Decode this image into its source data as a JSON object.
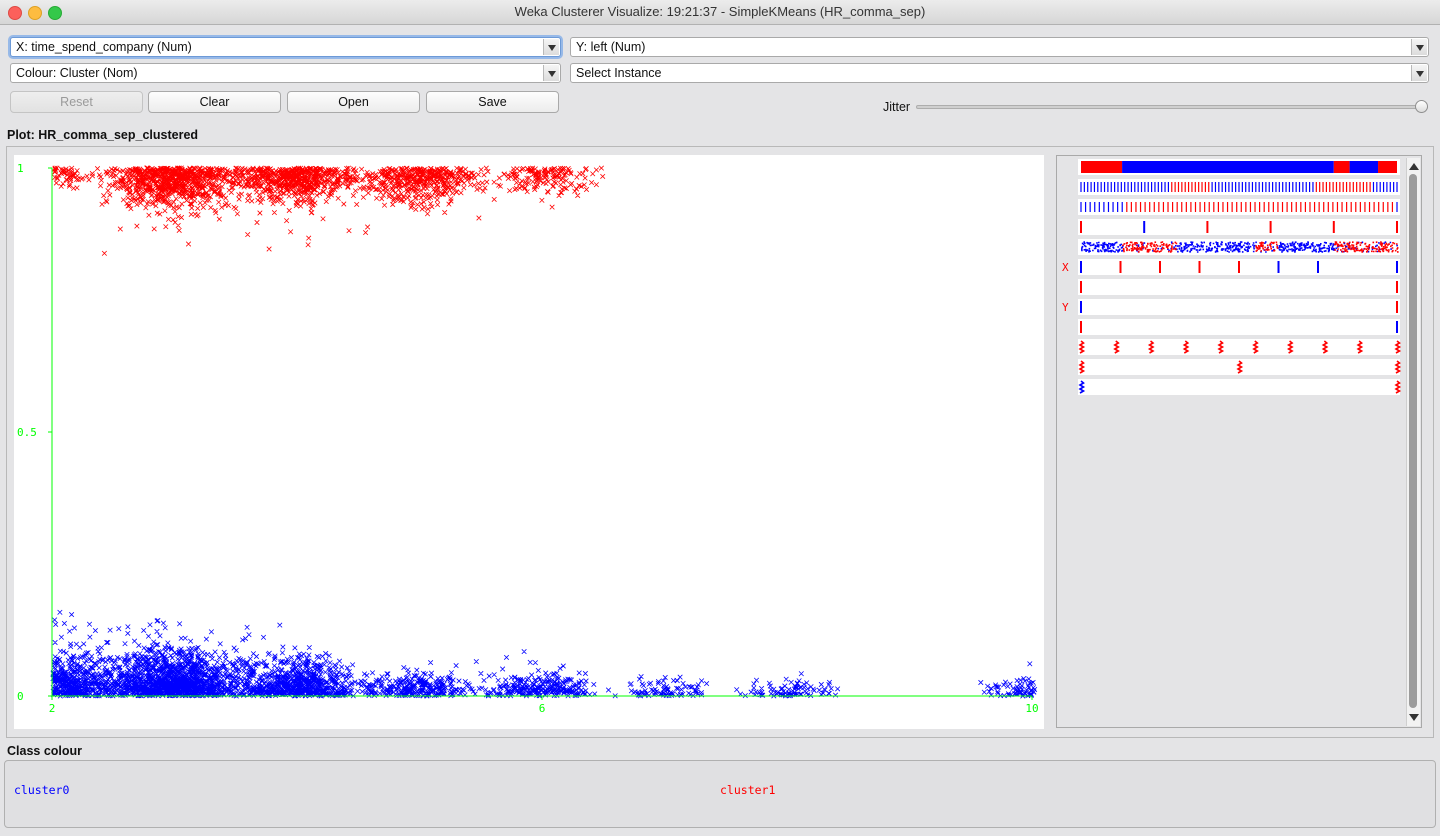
{
  "window": {
    "title": "Weka Clusterer Visualize: 19:21:37 - SimpleKMeans (HR_comma_sep)"
  },
  "controls": {
    "x_select": "X: time_spend_company (Num)",
    "y_select": "Y: left (Num)",
    "colour_select": "Colour: Cluster (Nom)",
    "instance_select": "Select Instance",
    "buttons": {
      "reset": "Reset",
      "clear": "Clear",
      "open": "Open",
      "save": "Save"
    },
    "jitter_label": "Jitter",
    "jitter_level": 1.0
  },
  "plot": {
    "label": "Plot: HR_comma_sep_clustered"
  },
  "colors": {
    "cluster0": "#0000ff",
    "cluster1": "#ff0000",
    "axis": "#00ff00"
  },
  "chart_data": {
    "type": "scatter",
    "title": "",
    "xlabel": "",
    "ylabel": "",
    "xlim": [
      2,
      10
    ],
    "ylim": [
      0,
      1
    ],
    "x_ticks": [
      "2",
      "6",
      "10"
    ],
    "y_ticks": [
      "1",
      "0.5",
      "0"
    ],
    "x_tick_values": [
      2,
      6,
      10
    ],
    "y_tick_values": [
      1,
      0.5,
      0
    ],
    "marker": "x",
    "series": [
      {
        "name": "cluster0",
        "color": "#0000ff",
        "groups": [
          {
            "x": 2,
            "y": 0,
            "count": 900,
            "density": 1.0
          },
          {
            "x": 3,
            "y": 0,
            "count": 1300,
            "density": 1.0
          },
          {
            "x": 4,
            "y": 0,
            "count": 700,
            "density": 0.85
          },
          {
            "x": 5,
            "y": 0,
            "count": 280,
            "density": 0.55
          },
          {
            "x": 6,
            "y": 0,
            "count": 260,
            "density": 0.55
          },
          {
            "x": 7,
            "y": 0,
            "count": 90,
            "density": 0.35
          },
          {
            "x": 8,
            "y": 0,
            "count": 90,
            "density": 0.35
          },
          {
            "x": 10,
            "y": 0,
            "count": 110,
            "density": 0.4
          }
        ]
      },
      {
        "name": "cluster1",
        "color": "#ff0000",
        "groups": [
          {
            "x": 2,
            "y": 1,
            "count": 120,
            "density": 0.45
          },
          {
            "x": 3,
            "y": 1,
            "count": 800,
            "density": 0.9
          },
          {
            "x": 4,
            "y": 1,
            "count": 600,
            "density": 0.85
          },
          {
            "x": 5,
            "y": 1,
            "count": 450,
            "density": 0.8
          },
          {
            "x": 6,
            "y": 1,
            "count": 160,
            "density": 0.55
          }
        ]
      }
    ]
  },
  "attribute_bars": {
    "x_marker": "X",
    "y_marker": "Y",
    "x_row": 5,
    "y_row": 7,
    "rows": [
      {
        "kind": "segments",
        "segments": [
          {
            "to": 0.13,
            "c": "#ff0000"
          },
          {
            "to": 0.8,
            "c": "#0000ff"
          },
          {
            "to": 0.85,
            "c": "#ff0000"
          },
          {
            "to": 0.94,
            "c": "#0000ff"
          },
          {
            "to": 1.0,
            "c": "#ff0000"
          }
        ]
      },
      {
        "kind": "dense_lines",
        "count": 95,
        "red_ranges": [
          [
            0.28,
            0.41
          ],
          [
            0.74,
            0.92
          ]
        ]
      },
      {
        "kind": "dense_lines",
        "count": 70,
        "red_ranges": [
          [
            0.14,
            0.99
          ]
        ]
      },
      {
        "kind": "sparse",
        "ticks": [
          {
            "p": 0.0,
            "c": "#ff0000"
          },
          {
            "p": 0.2,
            "c": "#0000ff"
          },
          {
            "p": 0.4,
            "c": "#ff0000"
          },
          {
            "p": 0.6,
            "c": "#ff0000"
          },
          {
            "p": 0.8,
            "c": "#ff0000"
          },
          {
            "p": 1.0,
            "c": "#ff0000"
          }
        ]
      },
      {
        "kind": "noise",
        "base": "#0000ff",
        "red_ranges": [
          [
            0.13,
            0.3
          ],
          [
            0.55,
            0.62
          ],
          [
            0.8,
            1.0
          ]
        ]
      },
      {
        "kind": "sparse",
        "ticks": [
          {
            "p": 0.0,
            "c": "#0000ff"
          },
          {
            "p": 0.125,
            "c": "#ff0000"
          },
          {
            "p": 0.25,
            "c": "#ff0000"
          },
          {
            "p": 0.375,
            "c": "#ff0000"
          },
          {
            "p": 0.5,
            "c": "#ff0000"
          },
          {
            "p": 0.625,
            "c": "#0000ff"
          },
          {
            "p": 0.75,
            "c": "#0000ff"
          },
          {
            "p": 1.0,
            "c": "#0000ff"
          }
        ]
      },
      {
        "kind": "sparse",
        "ticks": [
          {
            "p": 0.0,
            "c": "#ff0000"
          },
          {
            "p": 1.0,
            "c": "#ff0000"
          }
        ]
      },
      {
        "kind": "sparse",
        "ticks": [
          {
            "p": 0.0,
            "c": "#0000ff"
          },
          {
            "p": 1.0,
            "c": "#ff0000"
          }
        ]
      },
      {
        "kind": "sparse",
        "ticks": [
          {
            "p": 0.0,
            "c": "#ff0000"
          },
          {
            "p": 1.0,
            "c": "#0000ff"
          }
        ]
      },
      {
        "kind": "squiggle",
        "ticks": [
          0.0,
          0.11,
          0.22,
          0.33,
          0.44,
          0.55,
          0.66,
          0.77,
          0.88,
          1.0
        ],
        "c": "#ff0000"
      },
      {
        "kind": "squiggle",
        "ticks": [
          0.0,
          0.5,
          1.0
        ],
        "c": "#ff0000"
      },
      {
        "kind": "squiggle",
        "ticks": [
          0.0,
          1.0
        ],
        "c": "#0000ff",
        "last_c": "#ff0000"
      }
    ]
  },
  "legend": {
    "label": "Class colour",
    "items": [
      "cluster0",
      "cluster1"
    ]
  }
}
